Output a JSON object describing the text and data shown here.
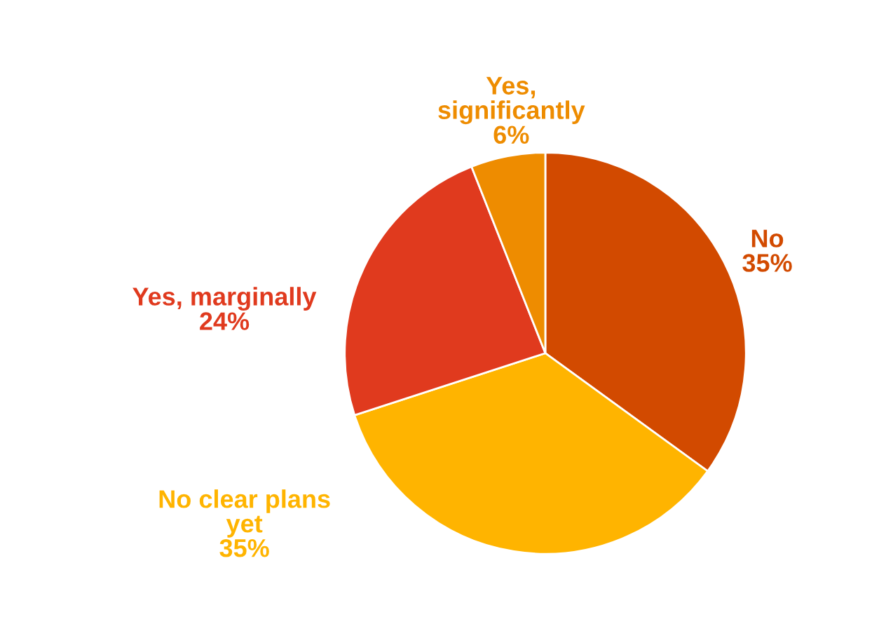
{
  "chart_data": {
    "type": "pie",
    "categories": [
      "No",
      "No clear plans\nyet",
      "Yes, marginally",
      "Yes,\nsignificantly"
    ],
    "values": [
      35,
      35,
      24,
      6
    ],
    "colors": [
      "#d24a00",
      "#ffb400",
      "#e03a1e",
      "#ee8c00"
    ],
    "value_labels": [
      "35%",
      "35%",
      "24%",
      "6%"
    ],
    "legend": false
  }
}
